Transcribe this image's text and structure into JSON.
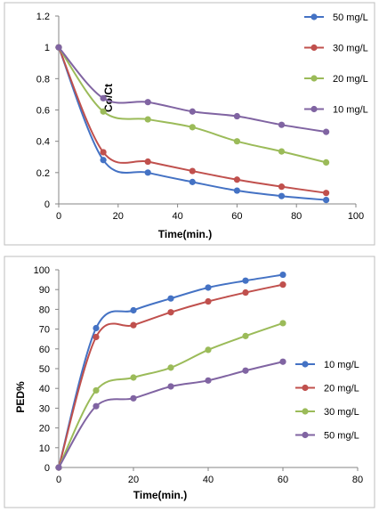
{
  "chart_data": [
    {
      "type": "line",
      "title": "",
      "xlabel": "Time(min.)",
      "ylabel": "Co/Ct",
      "xlim": [
        0,
        100
      ],
      "ylim": [
        0,
        1.2
      ],
      "xticks": [
        "0",
        "20",
        "40",
        "60",
        "80",
        "100"
      ],
      "yticks": [
        "0",
        "0.2",
        "0.4",
        "0.6",
        "0.8",
        "1",
        "1.2"
      ],
      "x": [
        0,
        15,
        30,
        45,
        60,
        75,
        90
      ],
      "grid": false,
      "legend_position": "right",
      "series": [
        {
          "name": "50 mg/L",
          "color": "#4472c4",
          "values": [
            1.0,
            0.28,
            0.2,
            0.14,
            0.085,
            0.05,
            0.025
          ]
        },
        {
          "name": "30 mg/L",
          "color": "#c0504d",
          "values": [
            1.0,
            0.33,
            0.27,
            0.21,
            0.155,
            0.11,
            0.07
          ]
        },
        {
          "name": "20 mg/L",
          "color": "#9bbb59",
          "values": [
            1.0,
            0.59,
            0.54,
            0.49,
            0.4,
            0.335,
            0.265
          ]
        },
        {
          "name": "10 mg/L",
          "color": "#8064a2",
          "values": [
            1.0,
            0.675,
            0.65,
            0.59,
            0.56,
            0.505,
            0.46
          ]
        }
      ]
    },
    {
      "type": "line",
      "title": "",
      "xlabel": "Time(min.)",
      "ylabel": "PED%",
      "xlim": [
        0,
        80
      ],
      "ylim": [
        0,
        100
      ],
      "xticks": [
        "0",
        "20",
        "40",
        "60",
        "80"
      ],
      "yticks": [
        "0",
        "10",
        "20",
        "30",
        "40",
        "50",
        "60",
        "70",
        "80",
        "90",
        "100"
      ],
      "x": [
        0,
        10,
        20,
        30,
        40,
        50,
        60
      ],
      "grid": false,
      "legend_position": "right",
      "series": [
        {
          "name": "10 mg/L",
          "color": "#4472c4",
          "values": [
            0,
            70.5,
            79.5,
            85.5,
            91,
            94.5,
            97.5
          ]
        },
        {
          "name": "20 mg/L",
          "color": "#c0504d",
          "values": [
            0,
            66,
            72,
            78.5,
            84,
            88.5,
            92.5
          ]
        },
        {
          "name": "30 mg/L",
          "color": "#9bbb59",
          "values": [
            0,
            39,
            45.5,
            50.5,
            59.5,
            66.5,
            73
          ]
        },
        {
          "name": "50 mg/L",
          "color": "#8064a2",
          "values": [
            0,
            31,
            35,
            41,
            44,
            49,
            53.5
          ]
        }
      ]
    }
  ]
}
